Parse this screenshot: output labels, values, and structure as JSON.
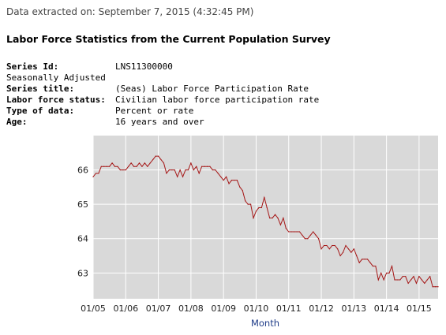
{
  "header": {
    "extracted": "Data extracted on: September 7, 2015 (4:32:45 PM)",
    "title": "Labor Force Statistics from the Current Population Survey"
  },
  "meta": {
    "series_id_label": "Series Id:",
    "series_id_value": "LNS11300000",
    "seasonal": "Seasonally Adjusted",
    "series_title_label": "Series title:",
    "series_title_value": "(Seas) Labor Force Participation Rate",
    "status_label": "Labor force status:",
    "status_value": "Civilian labor force participation rate",
    "type_label": "Type of data:",
    "type_value": "Percent or rate",
    "age_label": "Age:",
    "age_value": "16 years and over"
  },
  "colors": {
    "line": "#a51616",
    "plot_bg": "#d9d9d9",
    "grid": "#ffffff",
    "axis_title": "#1f3c88"
  },
  "chart_data": {
    "type": "line",
    "title": "",
    "xlabel": "Month",
    "ylabel": "",
    "grid": true,
    "xlim": [
      "2005-01",
      "2015-08"
    ],
    "ylim": [
      62.25,
      67.0
    ],
    "yticks": [
      63,
      64,
      65,
      66
    ],
    "xticks": [
      "01/05",
      "01/06",
      "01/07",
      "01/08",
      "01/09",
      "01/10",
      "01/11",
      "01/12",
      "01/13",
      "01/14",
      "01/15"
    ],
    "series": [
      {
        "name": "",
        "x": [
          "2005-01",
          "2005-02",
          "2005-03",
          "2005-04",
          "2005-05",
          "2005-06",
          "2005-07",
          "2005-08",
          "2005-09",
          "2005-10",
          "2005-11",
          "2005-12",
          "2006-01",
          "2006-02",
          "2006-03",
          "2006-04",
          "2006-05",
          "2006-06",
          "2006-07",
          "2006-08",
          "2006-09",
          "2006-10",
          "2006-11",
          "2006-12",
          "2007-01",
          "2007-02",
          "2007-03",
          "2007-04",
          "2007-05",
          "2007-06",
          "2007-07",
          "2007-08",
          "2007-09",
          "2007-10",
          "2007-11",
          "2007-12",
          "2008-01",
          "2008-02",
          "2008-03",
          "2008-04",
          "2008-05",
          "2008-06",
          "2008-07",
          "2008-08",
          "2008-09",
          "2008-10",
          "2008-11",
          "2008-12",
          "2009-01",
          "2009-02",
          "2009-03",
          "2009-04",
          "2009-05",
          "2009-06",
          "2009-07",
          "2009-08",
          "2009-09",
          "2009-10",
          "2009-11",
          "2009-12",
          "2010-01",
          "2010-02",
          "2010-03",
          "2010-04",
          "2010-05",
          "2010-06",
          "2010-07",
          "2010-08",
          "2010-09",
          "2010-10",
          "2010-11",
          "2010-12",
          "2011-01",
          "2011-02",
          "2011-03",
          "2011-04",
          "2011-05",
          "2011-06",
          "2011-07",
          "2011-08",
          "2011-09",
          "2011-10",
          "2011-11",
          "2011-12",
          "2012-01",
          "2012-02",
          "2012-03",
          "2012-04",
          "2012-05",
          "2012-06",
          "2012-07",
          "2012-08",
          "2012-09",
          "2012-10",
          "2012-11",
          "2012-12",
          "2013-01",
          "2013-02",
          "2013-03",
          "2013-04",
          "2013-05",
          "2013-06",
          "2013-07",
          "2013-08",
          "2013-09",
          "2013-10",
          "2013-11",
          "2013-12",
          "2014-01",
          "2014-02",
          "2014-03",
          "2014-04",
          "2014-05",
          "2014-06",
          "2014-07",
          "2014-08",
          "2014-09",
          "2014-10",
          "2014-11",
          "2014-12",
          "2015-01",
          "2015-02",
          "2015-03",
          "2015-04",
          "2015-05",
          "2015-06",
          "2015-07",
          "2015-08"
        ],
        "values": [
          65.8,
          65.9,
          65.9,
          66.1,
          66.1,
          66.1,
          66.1,
          66.2,
          66.1,
          66.1,
          66.0,
          66.0,
          66.0,
          66.1,
          66.2,
          66.1,
          66.1,
          66.2,
          66.1,
          66.2,
          66.1,
          66.2,
          66.3,
          66.4,
          66.4,
          66.3,
          66.2,
          65.9,
          66.0,
          66.0,
          66.0,
          65.8,
          66.0,
          65.8,
          66.0,
          66.0,
          66.2,
          66.0,
          66.1,
          65.9,
          66.1,
          66.1,
          66.1,
          66.1,
          66.0,
          66.0,
          65.9,
          65.8,
          65.7,
          65.8,
          65.6,
          65.7,
          65.7,
          65.7,
          65.5,
          65.4,
          65.1,
          65.0,
          65.0,
          64.6,
          64.8,
          64.9,
          64.9,
          65.2,
          64.9,
          64.6,
          64.6,
          64.7,
          64.6,
          64.4,
          64.6,
          64.3,
          64.2,
          64.2,
          64.2,
          64.2,
          64.2,
          64.1,
          64.0,
          64.0,
          64.1,
          64.2,
          64.1,
          64.0,
          63.7,
          63.8,
          63.8,
          63.7,
          63.8,
          63.8,
          63.7,
          63.5,
          63.6,
          63.8,
          63.7,
          63.6,
          63.7,
          63.5,
          63.3,
          63.4,
          63.4,
          63.4,
          63.3,
          63.2,
          63.2,
          62.8,
          63.0,
          62.8,
          63.0,
          63.0,
          63.2,
          62.8,
          62.8,
          62.8,
          62.9,
          62.9,
          62.7,
          62.8,
          62.9,
          62.7,
          62.9,
          62.8,
          62.7,
          62.8,
          62.9,
          62.6,
          62.6,
          62.6
        ]
      }
    ]
  }
}
